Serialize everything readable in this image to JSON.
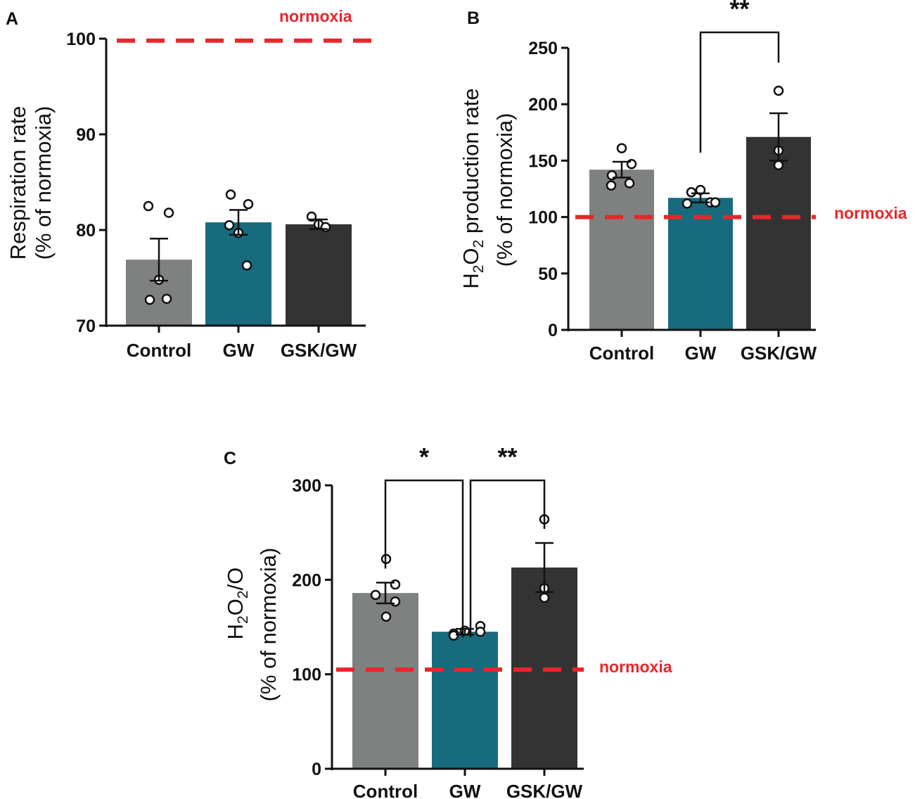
{
  "colors": {
    "control": "#7f8080",
    "gw": "#186a7d",
    "gskgw": "#333333",
    "reference": "#e8262b",
    "axis": "#111111"
  },
  "chart_data": [
    {
      "type": "bar",
      "panel": "A",
      "categories": [
        "Control",
        "GW",
        "GSK/GW"
      ],
      "values": [
        76.9,
        80.8,
        80.6
      ],
      "sem": [
        2.2,
        1.3,
        0.5
      ],
      "points": [
        [
          82.5,
          81.8,
          74.8,
          72.7,
          72.8
        ],
        [
          83.7,
          82.7,
          79.7,
          80.5,
          76.3
        ],
        [
          81.4,
          80.6,
          80.3
        ]
      ],
      "ylabel_lines": [
        "Respiration rate",
        "(% of normoxia)"
      ],
      "ylim": [
        70,
        100
      ],
      "yticks": [
        "70",
        "80",
        "90",
        "100"
      ],
      "reference": {
        "value": 99.8,
        "label": "normoxia"
      },
      "significance": []
    },
    {
      "type": "bar",
      "panel": "B",
      "categories": [
        "Control",
        "GW",
        "GSK/GW"
      ],
      "values": [
        142,
        117,
        171
      ],
      "sem": [
        7,
        4,
        21
      ],
      "points": [
        [
          161,
          147,
          137,
          128,
          130
        ],
        [
          124,
          113,
          122,
          112,
          113
        ],
        [
          212,
          159,
          146
        ]
      ],
      "ylabel_sub": [
        "H",
        "2",
        "O",
        "2",
        " production rate"
      ],
      "ylabel_line2": "(% of normoxia)",
      "ylim": [
        0,
        250
      ],
      "yticks": [
        "0",
        "50",
        "100",
        "150",
        "200",
        "250"
      ],
      "reference": {
        "value": 100,
        "label": "normoxia"
      },
      "significance": [
        {
          "from": 1,
          "to": 2,
          "label": "**"
        }
      ]
    },
    {
      "type": "bar",
      "panel": "C",
      "categories": [
        "Control",
        "GW",
        "GSK/GW"
      ],
      "values": [
        186,
        145,
        213
      ],
      "sem": [
        11,
        3,
        26
      ],
      "points": [
        [
          222,
          195,
          184,
          177,
          161
        ],
        [
          143,
          146,
          151,
          145,
          141
        ],
        [
          264,
          191,
          181
        ]
      ],
      "ylabel_sub": [
        "H",
        "2",
        "O",
        "2",
        "/O"
      ],
      "ylabel_line2": "(% of normoxia)",
      "ylim": [
        0,
        300
      ],
      "yticks": [
        "0",
        "100",
        "200",
        "300"
      ],
      "reference": {
        "value": 105,
        "label": "normoxia"
      },
      "significance": [
        {
          "from": 0,
          "to": 1,
          "label": "*"
        },
        {
          "from": 1,
          "to": 2,
          "label": "**"
        }
      ]
    }
  ]
}
